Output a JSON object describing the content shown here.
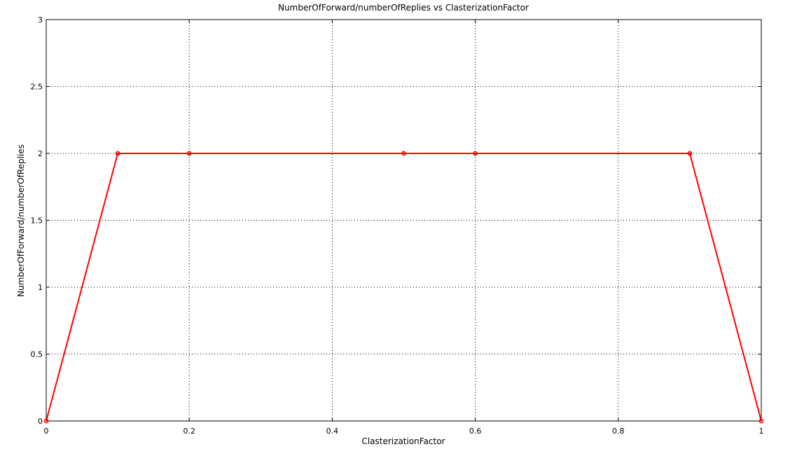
{
  "chart_data": {
    "type": "line",
    "title": "NumberOfForward/numberOfReplies vs ClasterizationFactor",
    "xlabel": "ClasterizationFactor",
    "ylabel": "NumberOfForward/numberOfReplies",
    "xlim": [
      0,
      1
    ],
    "ylim": [
      0,
      3
    ],
    "xticks": [
      "0",
      "0.2",
      "0.4",
      "0.6",
      "0.8",
      "1"
    ],
    "yticks": [
      "0",
      "0.5",
      "1",
      "1.5",
      "2",
      "2.5",
      "3"
    ],
    "grid": true,
    "series": [
      {
        "color": "#ff0000",
        "x": [
          0,
          0.1,
          0.2,
          0.5,
          0.6,
          0.9,
          1.0
        ],
        "y": [
          0,
          2,
          2,
          2,
          2,
          2,
          0
        ]
      }
    ]
  }
}
